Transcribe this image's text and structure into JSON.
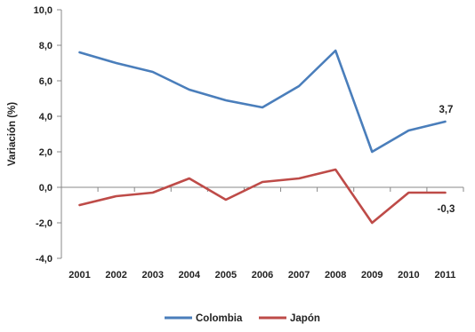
{
  "chart_data": {
    "type": "line",
    "title": "",
    "xlabel": "",
    "ylabel": "Variación (%)",
    "ylim": [
      -4.0,
      10.0
    ],
    "yticks": [
      -4.0,
      -2.0,
      0.0,
      2.0,
      4.0,
      6.0,
      8.0,
      10.0
    ],
    "ytick_labels": [
      "-4,0",
      "-2,0",
      "0,0",
      "2,0",
      "4,0",
      "6,0",
      "8,0",
      "10,0"
    ],
    "categories": [
      "2001",
      "2002",
      "2003",
      "2004",
      "2005",
      "2006",
      "2007",
      "2008",
      "2009",
      "2010",
      "2011"
    ],
    "grid": false,
    "legend_position": "bottom",
    "series": [
      {
        "name": "Colombia",
        "color": "#4a7ebb",
        "values": [
          7.6,
          7.0,
          6.5,
          5.5,
          4.9,
          4.5,
          5.7,
          7.7,
          2.0,
          3.2,
          3.7
        ],
        "end_label": "3,7"
      },
      {
        "name": "Japón",
        "color": "#be4b48",
        "values": [
          -1.0,
          -0.5,
          -0.3,
          0.5,
          -0.7,
          0.3,
          0.5,
          1.0,
          -2.0,
          -0.3,
          -0.3
        ],
        "end_label": "-0,3"
      }
    ]
  }
}
